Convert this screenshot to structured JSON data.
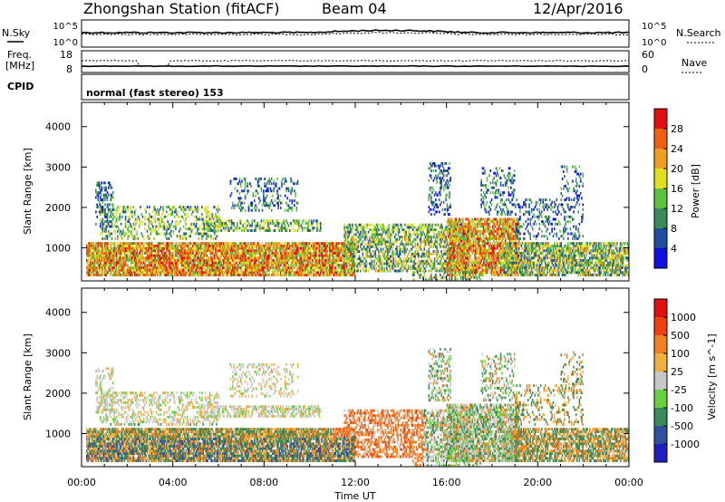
{
  "header": {
    "station": "Zhongshan Station (fitACF)",
    "beam": "Beam 04",
    "date": "12/Apr/2016"
  },
  "nsky_panel": {
    "left_label": "N.Sky",
    "right_label": "N.Search",
    "left_ticks": [
      "10^5",
      "10^0"
    ],
    "right_ticks": [
      "10^5",
      "10^0"
    ]
  },
  "freq_panel": {
    "left_label_1": "Freq.",
    "left_label_2": "[MHz]",
    "right_label": "Nave",
    "left_ticks": [
      "18",
      "8"
    ],
    "right_ticks": [
      "60",
      "0"
    ]
  },
  "cpid_panel": {
    "label": "CPID",
    "text": "normal (fast stereo) 153"
  },
  "chart_data": [
    {
      "type": "heatmap",
      "name": "power",
      "ylabel": "Slant Range [km]",
      "ylim": [
        180,
        4600
      ],
      "y_ticks": [
        "1000",
        "2000",
        "3000",
        "4000"
      ],
      "xlim_hours": [
        0,
        24
      ],
      "colorbar_label": "Power [dB]",
      "colorbar_ticks": [
        "28",
        "24",
        "20",
        "16",
        "12",
        "8",
        "4"
      ],
      "colors": [
        "#1010e0",
        "#1f4fa0",
        "#3a8a5a",
        "#5cc040",
        "#e0e020",
        "#f0a020",
        "#f06010",
        "#e01010"
      ]
    },
    {
      "type": "heatmap",
      "name": "velocity",
      "ylabel": "Slant Range [km]",
      "ylim": [
        180,
        4600
      ],
      "y_ticks": [
        "1000",
        "2000",
        "3000",
        "4000"
      ],
      "xlim_hours": [
        0,
        24
      ],
      "colorbar_label": "Velocity [m s^-1]",
      "colorbar_ticks": [
        "1000",
        "500",
        "100",
        "25",
        "-25",
        "-100",
        "-500",
        "-1000"
      ],
      "colors": [
        "#2020c0",
        "#3050a0",
        "#3a8a5a",
        "#6ad040",
        "#c8c8c8",
        "#f0b040",
        "#f08020",
        "#f04010",
        "#e01010"
      ]
    }
  ],
  "x_axis": {
    "label": "Time UT",
    "ticks": [
      "00:00",
      "04:00",
      "08:00",
      "12:00",
      "16:00",
      "20:00",
      "00:00"
    ]
  }
}
